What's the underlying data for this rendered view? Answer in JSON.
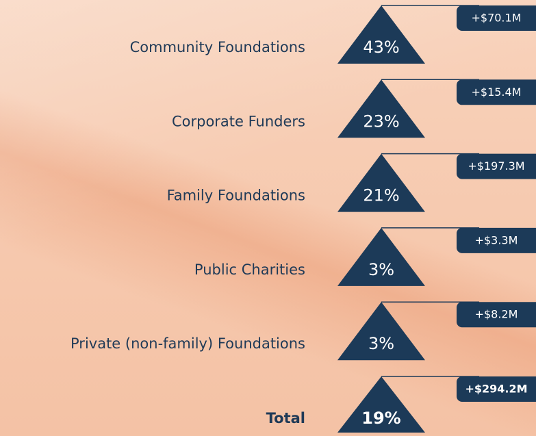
{
  "rows": [
    {
      "label": "Community Foundations",
      "percent": "43%",
      "amount": "+$70.1M"
    },
    {
      "label": "Corporate Funders",
      "percent": "23%",
      "amount": "+$15.4M"
    },
    {
      "label": "Family Foundations",
      "percent": "21%",
      "amount": "+$197.3M"
    },
    {
      "label": "Public Charities",
      "percent": "3%",
      "amount": "+$3.3M"
    },
    {
      "label": "Private (non-family) Foundations",
      "percent": "3%",
      "amount": "+$8.2M"
    }
  ],
  "total": {
    "label": "Total",
    "percent": "19%",
    "amount": "+$294.2M"
  }
}
